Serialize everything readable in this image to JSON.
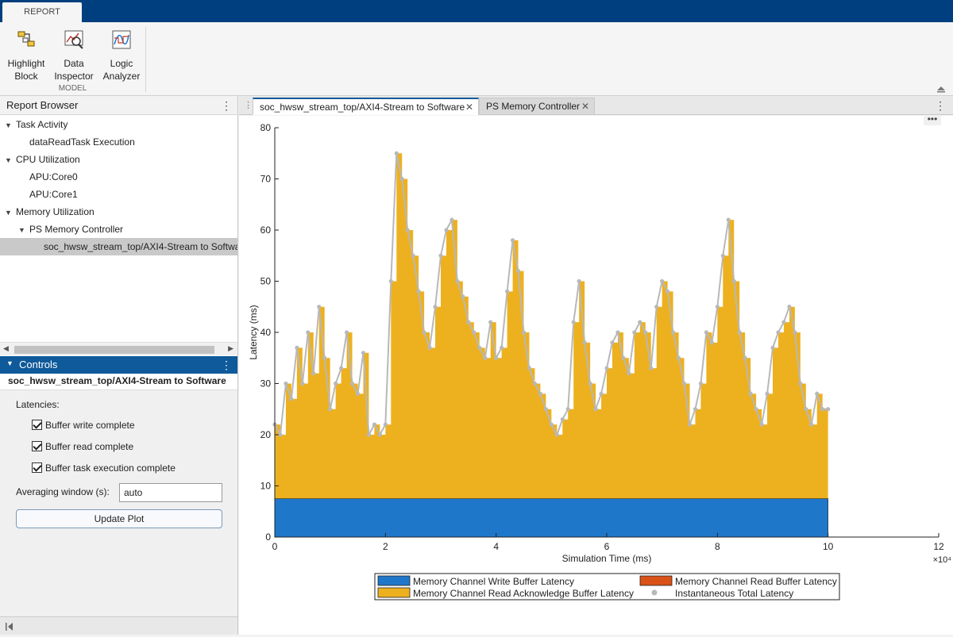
{
  "toolstrip": {
    "tab_label": "REPORT"
  },
  "ribbon": {
    "buttons": [
      {
        "label_line1": "Highlight",
        "label_line2": "Block"
      },
      {
        "label_line1": "Data",
        "label_line2": "Inspector"
      },
      {
        "label_line1": "Logic",
        "label_line2": "Analyzer"
      }
    ],
    "section_label": "MODEL"
  },
  "report_browser": {
    "title": "Report Browser",
    "tree": [
      {
        "label": "Task Activity",
        "level": 0,
        "expanded": true
      },
      {
        "label": "dataReadTask Execution",
        "level": 1
      },
      {
        "label": "CPU Utilization",
        "level": 0,
        "expanded": true
      },
      {
        "label": "APU:Core0",
        "level": 1
      },
      {
        "label": "APU:Core1",
        "level": 1
      },
      {
        "label": "Memory Utilization",
        "level": 0,
        "expanded": true
      },
      {
        "label": "PS Memory Controller",
        "level": 1,
        "expanded": true
      },
      {
        "label": "soc_hwsw_stream_top/AXI4-Stream to Softwa",
        "level": 2,
        "selected": true
      }
    ]
  },
  "controls": {
    "title": "Controls",
    "subtitle": "soc_hwsw_stream_top/AXI4-Stream to Software",
    "latencies_label": "Latencies:",
    "checkboxes": [
      {
        "label": "Buffer write complete",
        "checked": true
      },
      {
        "label": "Buffer read complete",
        "checked": true
      },
      {
        "label": "Buffer task execution complete",
        "checked": true
      }
    ],
    "averaging_label": "Averaging window (s):",
    "averaging_value": "auto",
    "update_button": "Update Plot"
  },
  "tabs": [
    {
      "label": "soc_hwsw_stream_top/AXI4-Stream to Software",
      "active": true
    },
    {
      "label": "PS Memory Controller",
      "active": false
    }
  ],
  "chart_data": {
    "type": "area",
    "xlabel": "Simulation Time (ms)",
    "ylabel": "Latency (ms)",
    "x_exponent_label": "×10⁴",
    "xlim": [
      0,
      12
    ],
    "ylim": [
      0,
      80
    ],
    "xticks": [
      "0",
      "2",
      "4",
      "6",
      "8",
      "10",
      "12"
    ],
    "yticks": [
      "0",
      "10",
      "20",
      "30",
      "40",
      "50",
      "60",
      "70",
      "80"
    ],
    "x_range_data": [
      0,
      10
    ],
    "series": [
      {
        "name": "Memory Channel Write Buffer Latency",
        "color": "#1f77c9",
        "values_const": 7.5
      },
      {
        "name": "Memory Channel Read Buffer Latency",
        "color": "#d95319",
        "values_const": 0
      },
      {
        "name": "Memory Channel Read Acknowledge Buffer Latency",
        "color": "#edb120"
      },
      {
        "name": "Instantaneous Total Latency",
        "color": "#b8b8b8",
        "marker": "dot"
      }
    ],
    "x": [
      0,
      0.1,
      0.2,
      0.3,
      0.4,
      0.5,
      0.6,
      0.7,
      0.8,
      0.9,
      1.0,
      1.1,
      1.2,
      1.3,
      1.4,
      1.5,
      1.6,
      1.7,
      1.8,
      1.9,
      2.0,
      2.1,
      2.2,
      2.3,
      2.4,
      2.5,
      2.6,
      2.7,
      2.8,
      2.9,
      3.0,
      3.1,
      3.2,
      3.3,
      3.4,
      3.5,
      3.6,
      3.7,
      3.8,
      3.9,
      4.0,
      4.1,
      4.2,
      4.3,
      4.4,
      4.5,
      4.6,
      4.7,
      4.8,
      4.9,
      5.0,
      5.1,
      5.2,
      5.3,
      5.4,
      5.5,
      5.6,
      5.7,
      5.8,
      5.9,
      6.0,
      6.1,
      6.2,
      6.3,
      6.4,
      6.5,
      6.6,
      6.7,
      6.8,
      6.9,
      7.0,
      7.1,
      7.2,
      7.3,
      7.4,
      7.5,
      7.6,
      7.7,
      7.8,
      7.9,
      8.0,
      8.1,
      8.2,
      8.3,
      8.4,
      8.5,
      8.6,
      8.7,
      8.8,
      8.9,
      9.0,
      9.1,
      9.2,
      9.3,
      9.4,
      9.5,
      9.6,
      9.7,
      9.8,
      9.9,
      10.0
    ],
    "total": [
      22,
      20,
      30,
      27,
      37,
      30,
      40,
      32,
      45,
      35,
      25,
      30,
      33,
      40,
      30,
      28,
      36,
      20,
      22,
      20,
      22,
      50,
      75,
      70,
      60,
      55,
      48,
      40,
      37,
      45,
      55,
      60,
      62,
      50,
      47,
      42,
      40,
      37,
      35,
      42,
      35,
      37,
      48,
      58,
      52,
      40,
      33,
      30,
      28,
      25,
      22,
      20,
      23,
      25,
      42,
      50,
      38,
      30,
      25,
      28,
      33,
      38,
      40,
      35,
      32,
      40,
      42,
      40,
      33,
      45,
      50,
      48,
      40,
      35,
      30,
      22,
      25,
      30,
      40,
      38,
      45,
      55,
      62,
      50,
      40,
      35,
      28,
      25,
      22,
      28,
      37,
      40,
      42,
      45,
      40,
      30,
      25,
      22,
      28,
      25,
      25
    ]
  }
}
